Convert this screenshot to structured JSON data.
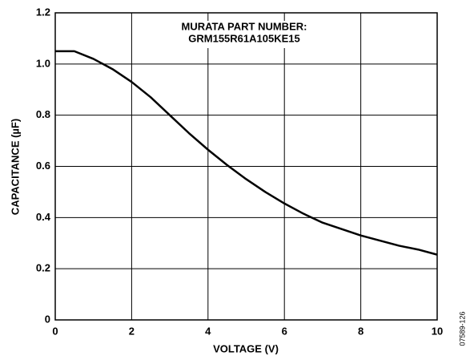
{
  "chart_data": {
    "type": "line",
    "xlabel": "VOLTAGE (V)",
    "ylabel": "CAPACITANCE (µF)",
    "annotations": [
      "MURATA PART NUMBER:",
      "GRM155R61A105KE15"
    ],
    "side_note": "07589-126",
    "x": [
      0,
      0.5,
      1,
      1.5,
      2,
      2.5,
      3,
      3.5,
      4,
      4.5,
      5,
      5.5,
      6,
      6.5,
      7,
      7.5,
      8,
      8.5,
      9,
      9.5,
      10
    ],
    "series": [
      {
        "name": "GRM155R61A105KE15",
        "color": "#000000",
        "values": [
          1.05,
          1.05,
          1.02,
          0.98,
          0.93,
          0.87,
          0.8,
          0.73,
          0.665,
          0.605,
          0.55,
          0.5,
          0.455,
          0.415,
          0.38,
          0.355,
          0.33,
          0.31,
          0.29,
          0.275,
          0.255
        ]
      }
    ],
    "xlim": [
      0,
      10
    ],
    "xticks": [
      0,
      2,
      4,
      6,
      8,
      10
    ],
    "ylim": [
      0,
      1.2
    ],
    "yticks": [
      0,
      0.2,
      0.4,
      0.6,
      0.8,
      {
        "value": 1,
        "label": "1.0"
      },
      1.2
    ],
    "grid": true
  }
}
